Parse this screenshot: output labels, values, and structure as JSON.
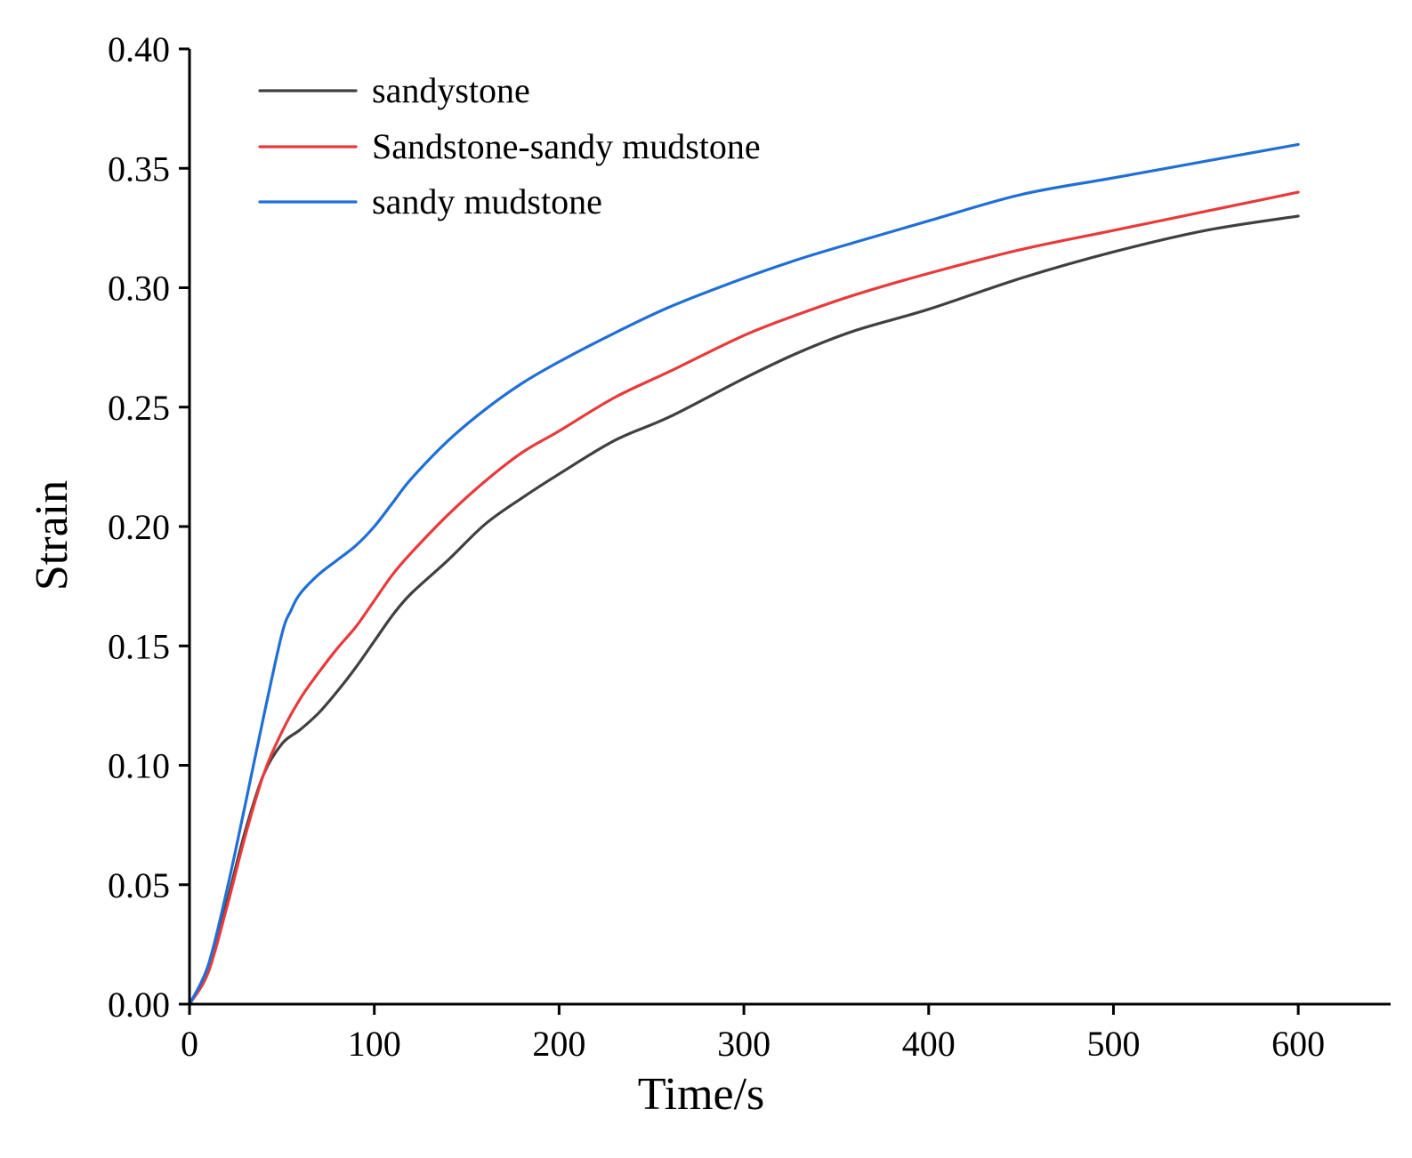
{
  "chart_data": {
    "type": "line",
    "title": "",
    "xlabel": "Time/s",
    "ylabel": "Strain",
    "xlim": [
      0,
      650
    ],
    "ylim": [
      0,
      0.4
    ],
    "x_ticks": [
      0,
      100,
      200,
      300,
      400,
      500,
      600
    ],
    "x_tick_labels": [
      "0",
      "100",
      "200",
      "300",
      "400",
      "500",
      "600"
    ],
    "y_ticks": [
      0,
      0.05,
      0.1,
      0.15,
      0.2,
      0.25,
      0.3,
      0.35,
      0.4
    ],
    "y_tick_labels": [
      "0.00",
      "0.05",
      "0.10",
      "0.15",
      "0.20",
      "0.25",
      "0.30",
      "0.35",
      "0.40"
    ],
    "grid": false,
    "legend_position": "top-left",
    "series": [
      {
        "name": "sandystone",
        "color": "#404040",
        "x": [
          0,
          10,
          20,
          30,
          40,
          50,
          60,
          70,
          80,
          90,
          100,
          110,
          120,
          140,
          160,
          180,
          200,
          230,
          260,
          300,
          330,
          360,
          400,
          450,
          500,
          550,
          600
        ],
        "y": [
          0,
          0.014,
          0.042,
          0.072,
          0.096,
          0.109,
          0.115,
          0.122,
          0.131,
          0.141,
          0.152,
          0.163,
          0.172,
          0.186,
          0.201,
          0.212,
          0.222,
          0.236,
          0.246,
          0.262,
          0.273,
          0.282,
          0.291,
          0.304,
          0.315,
          0.324,
          0.33
        ]
      },
      {
        "name": "Sandstone-sandy mudstone",
        "color": "#e83a3a",
        "x": [
          0,
          10,
          20,
          30,
          40,
          50,
          60,
          70,
          80,
          90,
          100,
          110,
          120,
          140,
          160,
          180,
          200,
          230,
          260,
          300,
          330,
          360,
          400,
          450,
          500,
          550,
          600
        ],
        "y": [
          0,
          0.013,
          0.04,
          0.07,
          0.096,
          0.114,
          0.128,
          0.139,
          0.149,
          0.158,
          0.169,
          0.18,
          0.189,
          0.205,
          0.219,
          0.231,
          0.24,
          0.254,
          0.265,
          0.28,
          0.289,
          0.297,
          0.306,
          0.316,
          0.324,
          0.332,
          0.34
        ]
      },
      {
        "name": "sandy mudstone",
        "color": "#1f6fd6",
        "x": [
          0,
          10,
          20,
          30,
          40,
          50,
          55,
          60,
          70,
          80,
          90,
          100,
          110,
          120,
          140,
          160,
          180,
          200,
          230,
          260,
          300,
          330,
          360,
          400,
          450,
          500,
          550,
          600
        ],
        "y": [
          0,
          0.016,
          0.047,
          0.083,
          0.12,
          0.155,
          0.165,
          0.172,
          0.18,
          0.186,
          0.192,
          0.2,
          0.21,
          0.22,
          0.236,
          0.249,
          0.26,
          0.269,
          0.281,
          0.292,
          0.304,
          0.312,
          0.319,
          0.328,
          0.339,
          0.346,
          0.353,
          0.36
        ]
      }
    ]
  }
}
